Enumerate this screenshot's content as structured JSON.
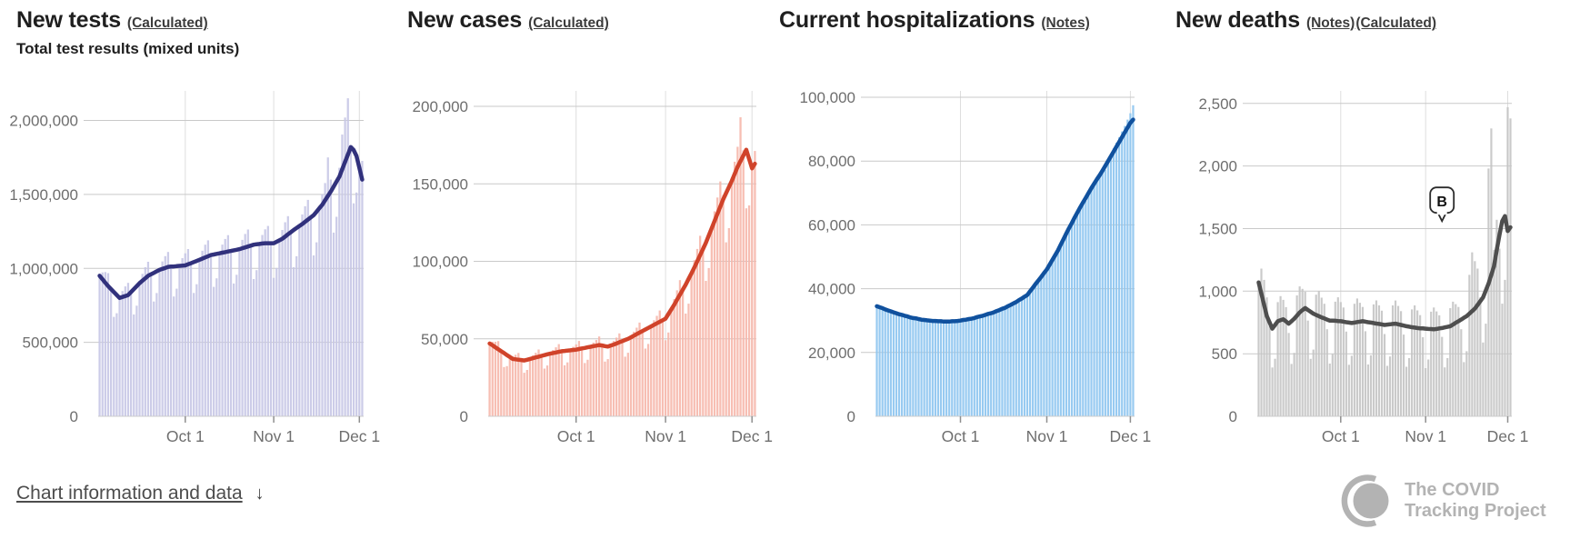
{
  "ui": {
    "footer_link": "Chart information and data",
    "footer_arrow": "↓",
    "logo": {
      "line1": "The COVID",
      "line2": "Tracking Project"
    }
  },
  "chart_data": [
    {
      "type": "bar+line",
      "title": "New tests",
      "links": [
        "(Calculated)"
      ],
      "subtitle": "Total test results (mixed units)",
      "start_date": "2020-09-01",
      "x_ticks": [
        {
          "day": 30,
          "label": "Oct 1"
        },
        {
          "day": 61,
          "label": "Nov 1"
        },
        {
          "day": 91,
          "label": "Dec 1"
        }
      ],
      "ylim": [
        0,
        2200000
      ],
      "y_ticks": [
        {
          "v": 0,
          "label": "0"
        },
        {
          "v": 500000,
          "label": "500,000"
        },
        {
          "v": 1000000,
          "label": "1,000,000"
        },
        {
          "v": 1500000,
          "label": "1,500,000"
        },
        {
          "v": 2000000,
          "label": "2,000,000"
        }
      ],
      "value_scale": 1000,
      "bar_color": "#c6c7e6",
      "line_color": "#31317c",
      "bars": [
        950,
        973,
        975,
        968,
        860,
        672,
        697,
        800,
        847,
        878,
        902,
        840,
        688,
        748,
        900,
        963,
        1008,
        1045,
        960,
        776,
        833,
        990,
        1047,
        1083,
        1111,
        1012,
        810,
        863,
        1017,
        1069,
        1102,
        1131,
        1035,
        834,
        893,
        1058,
        1119,
        1160,
        1190,
        1090,
        875,
        933,
        1102,
        1161,
        1199,
        1225,
        1118,
        898,
        957,
        1130,
        1193,
        1233,
        1263,
        1154,
        928,
        988,
        1165,
        1226,
        1264,
        1287,
        1170,
        936,
        1003,
        1190,
        1260,
        1312,
        1353,
        1245,
        1008,
        1082,
        1287,
        1365,
        1420,
        1463,
        1345,
        1088,
        1176,
        1407,
        1502,
        1577,
        1750,
        1600,
        1242,
        1349,
        1680,
        1905,
        2020,
        2150,
        1820,
        1440,
        1513,
        1700,
        1727
      ],
      "avg7": [
        950,
        927,
        903,
        880,
        860,
        840,
        820,
        800,
        807,
        813,
        820,
        840,
        860,
        880,
        900,
        917,
        933,
        950,
        960,
        970,
        980,
        990,
        997,
        1003,
        1010,
        1012,
        1013,
        1015,
        1017,
        1018,
        1020,
        1028,
        1035,
        1043,
        1050,
        1058,
        1066,
        1074,
        1082,
        1090,
        1094,
        1098,
        1102,
        1106,
        1110,
        1114,
        1118,
        1122,
        1126,
        1130,
        1136,
        1142,
        1148,
        1154,
        1160,
        1163,
        1165,
        1168,
        1170,
        1170,
        1170,
        1170,
        1180,
        1190,
        1200,
        1215,
        1230,
        1245,
        1260,
        1273,
        1287,
        1300,
        1315,
        1330,
        1345,
        1360,
        1383,
        1407,
        1430,
        1460,
        1490,
        1520,
        1553,
        1587,
        1620,
        1670,
        1720,
        1770,
        1820,
        1800,
        1760,
        1680,
        1600
      ]
    },
    {
      "type": "bar+line",
      "title": "New cases",
      "links": [
        "(Calculated)"
      ],
      "start_date": "2020-09-01",
      "x_ticks": [
        {
          "day": 30,
          "label": "Oct 1"
        },
        {
          "day": 61,
          "label": "Nov 1"
        },
        {
          "day": 91,
          "label": "Dec 1"
        }
      ],
      "ylim": [
        0,
        210000
      ],
      "y_ticks": [
        {
          "v": 0,
          "label": "0"
        },
        {
          "v": 50000,
          "label": "50,000"
        },
        {
          "v": 100000,
          "label": "100,000"
        },
        {
          "v": 150000,
          "label": "150,000"
        },
        {
          "v": 200000,
          "label": "200,000"
        }
      ],
      "value_scale": 1000,
      "bar_color": "#f6b7ab",
      "line_color": "#d0432a",
      "bars": [
        47,
        48.1,
        48.1,
        48.5,
        42.8,
        31.8,
        32.4,
        38.3,
        38.9,
        39.7,
        40.9,
        37,
        28.1,
        29.9,
        37,
        39.4,
        41,
        43.1,
        39.8,
        30.8,
        32.8,
        40.4,
        42.8,
        44.5,
        46.6,
        42.8,
        32.9,
        34.8,
        42.6,
        44.9,
        46.4,
        48.6,
        44.7,
        34.4,
        36.5,
        44.9,
        47.6,
        49.2,
        51.5,
        46.6,
        35.3,
        36.9,
        45.7,
        48.6,
        50.8,
        53.5,
        49.5,
        38.5,
        41,
        51,
        54.6,
        57.2,
        60.5,
        56.1,
        43.7,
        46.7,
        58,
        62,
        64.8,
        68.3,
        63.2,
        49.1,
        54.1,
        69,
        75.6,
        81.3,
        87.9,
        83.4,
        66.3,
        72.7,
        92.3,
        100.8,
        108,
        116.5,
        110.2,
        87.4,
        95.7,
        121.3,
        132.3,
        141.2,
        151.6,
        142.8,
        112.3,
        121.4,
        152,
        164.3,
        173.9,
        193,
        171.7,
        134.2,
        136.1,
        160,
        171.2
      ],
      "avg7": [
        47,
        45.8,
        44.5,
        43.3,
        42,
        40.8,
        39.5,
        38.3,
        37,
        36.8,
        36.5,
        36.3,
        36,
        36.5,
        37,
        37.5,
        38,
        38.5,
        39,
        39.5,
        40,
        40.4,
        40.8,
        41.2,
        41.6,
        42,
        42.2,
        42.4,
        42.6,
        42.8,
        43,
        43.4,
        43.8,
        44.1,
        44.5,
        44.9,
        45.3,
        45.6,
        46,
        45.7,
        45.3,
        45,
        45.7,
        46.3,
        47,
        47.8,
        48.5,
        49.3,
        50,
        51,
        52,
        53,
        54,
        55,
        56,
        57,
        58,
        59,
        60,
        61,
        62,
        63,
        66,
        69,
        72,
        75.3,
        78.5,
        81.8,
        85,
        88.7,
        92.3,
        96,
        100,
        104,
        108,
        112,
        116.7,
        121.3,
        126,
        130.7,
        135.3,
        140,
        144,
        148,
        152,
        156.5,
        161,
        164.7,
        168.3,
        172,
        166,
        160,
        163
      ]
    },
    {
      "type": "bar+line",
      "title": "Current hospitalizations",
      "links": [
        "(Notes)"
      ],
      "start_date": "2020-09-01",
      "x_ticks": [
        {
          "day": 30,
          "label": "Oct 1"
        },
        {
          "day": 61,
          "label": "Nov 1"
        },
        {
          "day": 91,
          "label": "Dec 1"
        }
      ],
      "ylim": [
        0,
        102000
      ],
      "y_ticks": [
        {
          "v": 0,
          "label": "0"
        },
        {
          "v": 20000,
          "label": "20,000"
        },
        {
          "v": 40000,
          "label": "40,000"
        },
        {
          "v": 60000,
          "label": "60,000"
        },
        {
          "v": 80000,
          "label": "80,000"
        },
        {
          "v": 100000,
          "label": "100,000"
        }
      ],
      "value_scale": 1000,
      "bar_color": "#8cc4f0",
      "line_color": "#10519e",
      "bars": [
        34.5,
        34.4,
        34.2,
        33.7,
        33,
        32.4,
        32.3,
        32.3,
        32.2,
        32.1,
        31.7,
        31.1,
        30.5,
        30.5,
        30.7,
        30.7,
        30.6,
        30.4,
        29.9,
        29.6,
        29.6,
        29.9,
        29.9,
        30.1,
        29.8,
        29.6,
        29.3,
        29.5,
        29.8,
        30,
        30.3,
        30.4,
        30.1,
        30,
        30.3,
        30.8,
        31.3,
        31.6,
        31.7,
        31.6,
        31.6,
        32,
        32.6,
        33.2,
        33.6,
        33.9,
        33.8,
        34,
        34.6,
        35.4,
        36,
        36.8,
        37.1,
        37.3,
        37.4,
        38.8,
        40.3,
        41.7,
        43,
        43.9,
        44.7,
        45.3,
        47,
        49,
        50.8,
        52.5,
        54.1,
        55.2,
        56.4,
        58.4,
        60.6,
        62.6,
        64.5,
        65.8,
        66.7,
        67.5,
        69.3,
        71.5,
        73.3,
        75,
        76,
        76.6,
        77.3,
        79.2,
        81.5,
        84,
        85.8,
        87.5,
        89.3,
        91,
        93,
        95,
        97.5
      ],
      "avg7": [
        34.5,
        34.2,
        33.9,
        33.5,
        33.2,
        32.9,
        32.6,
        32.3,
        32,
        31.8,
        31.5,
        31.3,
        31,
        30.8,
        30.7,
        30.5,
        30.3,
        30.2,
        30.1,
        30,
        29.9,
        29.9,
        29.8,
        29.8,
        29.7,
        29.7,
        29.7,
        29.8,
        29.8,
        29.9,
        30,
        30.2,
        30.3,
        30.5,
        30.6,
        30.8,
        31.1,
        31.3,
        31.5,
        31.8,
        32.1,
        32.3,
        32.6,
        33,
        33.3,
        33.7,
        34,
        34.5,
        34.9,
        35.4,
        35.8,
        36.4,
        36.9,
        37.5,
        38,
        39.2,
        40.3,
        41.5,
        42.6,
        43.7,
        44.9,
        46,
        47.5,
        49,
        50.5,
        52,
        53.8,
        55.5,
        57.3,
        59,
        60.6,
        62.3,
        63.9,
        65.5,
        67,
        68.5,
        70,
        71.5,
        72.9,
        74.3,
        75.6,
        77,
        78.5,
        80,
        81.5,
        83,
        84.5,
        86,
        87.5,
        89,
        90.5,
        92,
        93
      ]
    },
    {
      "type": "bar+line",
      "title": "New deaths",
      "links": [
        "(Notes)",
        "(Calculated)"
      ],
      "start_date": "2020-09-01",
      "x_ticks": [
        {
          "day": 30,
          "label": "Oct 1"
        },
        {
          "day": 61,
          "label": "Nov 1"
        },
        {
          "day": 91,
          "label": "Dec 1"
        }
      ],
      "ylim": [
        0,
        2600
      ],
      "y_ticks": [
        {
          "v": 0,
          "label": "0"
        },
        {
          "v": 500,
          "label": "500"
        },
        {
          "v": 1000,
          "label": "1,000"
        },
        {
          "v": 1500,
          "label": "1,500"
        },
        {
          "v": 2000,
          "label": "2,000"
        },
        {
          "v": 2500,
          "label": "2,500"
        }
      ],
      "value_scale": 1,
      "bar_color": "#c4c4c4",
      "line_color": "#4e4e4e",
      "annotation": {
        "label": "B",
        "day": 67,
        "value": 1560
      },
      "bars": [
        1050,
        1180,
        1090,
        950,
        720,
        390,
        460,
        912,
        960,
        930,
        872,
        666,
        418,
        507,
        966,
        1038,
        1018,
        995,
        765,
        459,
        533,
        972,
        1000,
        948,
        899,
        696,
        421,
        497,
        916,
        951,
        912,
        869,
        677,
        412,
        484,
        899,
        941,
        907,
        874,
        680,
        414,
        487,
        894,
        926,
        886,
        844,
        657,
        403,
        478,
        886,
        925,
        882,
        840,
        653,
        396,
        465,
        854,
        886,
        846,
        808,
        632,
        385,
        454,
        836,
        869,
        838,
        807,
        635,
        391,
        465,
        864,
        916,
        896,
        874,
        696,
        433,
        520,
        1130,
        1310,
        1240,
        1180,
        950,
        590,
        740,
        1980,
        2300,
        1330,
        1570,
        1340,
        900,
        1090,
        2470,
        2380
      ],
      "avg7": [
        1070,
        980,
        890,
        800,
        750,
        700,
        730,
        760,
        768,
        775,
        758,
        740,
        760,
        780,
        805,
        830,
        848,
        865,
        850,
        835,
        820,
        810,
        800,
        790,
        782,
        773,
        765,
        764,
        763,
        761,
        760,
        756,
        752,
        749,
        745,
        749,
        753,
        756,
        760,
        756,
        752,
        749,
        745,
        741,
        738,
        734,
        730,
        733,
        735,
        738,
        740,
        735,
        730,
        725,
        720,
        716,
        712,
        709,
        705,
        703,
        702,
        700,
        698,
        697,
        695,
        698,
        702,
        705,
        710,
        715,
        720,
        733,
        747,
        760,
        773,
        787,
        800,
        820,
        840,
        860,
        890,
        920,
        950,
        1005,
        1060,
        1130,
        1200,
        1330,
        1450,
        1560,
        1600,
        1480,
        1510
      ]
    }
  ]
}
